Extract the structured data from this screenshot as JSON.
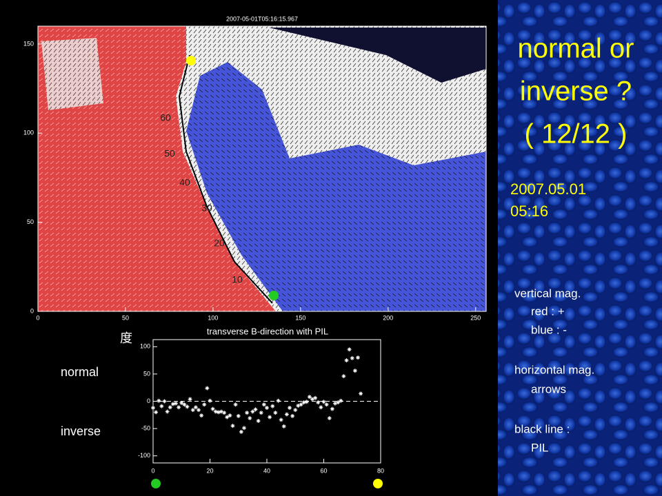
{
  "slide": {
    "title_lines": [
      "normal or",
      "inverse ?",
      "( 12/12 )"
    ],
    "date_lines": [
      "2007.05.01",
      "05:16"
    ],
    "legend_lines": [
      "vertical mag.",
      "red : +",
      "blue : -",
      "horizontal mag.",
      "arrows",
      "black line :",
      "PIL"
    ]
  },
  "magnetogram": {
    "title": "2007-05-01T05:16:15.967",
    "xlim": [
      0,
      256
    ],
    "ylim": [
      0,
      160
    ],
    "xticks": [
      0,
      50,
      100,
      150,
      200,
      250
    ],
    "yticks": [
      0,
      50,
      100,
      150
    ],
    "contour_labels": [
      "60",
      "50",
      "40",
      "30",
      "20",
      "10"
    ]
  },
  "chart_data": {
    "type": "scatter",
    "title": "transverse B-direction with PIL",
    "ylabel": "度",
    "annotations": [
      "normal",
      "inverse"
    ],
    "color": "#ffffff",
    "xlim": [
      0,
      80
    ],
    "ylim": [
      -113,
      113
    ],
    "xticks": [
      0,
      20,
      40,
      60,
      80
    ],
    "yticks": [
      -100,
      -50,
      0,
      50,
      100
    ],
    "x": [
      0,
      1,
      2,
      3,
      4,
      5,
      6,
      7,
      8,
      9,
      10,
      11,
      12,
      13,
      14,
      15,
      16,
      17,
      18,
      19,
      20,
      21,
      22,
      23,
      24,
      25,
      26,
      27,
      28,
      29,
      30,
      31,
      32,
      33,
      34,
      35,
      36,
      37,
      38,
      39,
      40,
      41,
      42,
      43,
      44,
      45,
      46,
      47,
      48,
      49,
      50,
      51,
      52,
      53,
      54,
      55,
      56,
      57,
      58,
      59,
      60,
      61,
      62,
      63,
      64,
      65,
      66,
      67,
      68,
      69,
      70,
      71,
      72,
      73
    ],
    "values": [
      -12,
      -20,
      1,
      -9,
      0,
      -19,
      -11,
      -5,
      -4,
      -11,
      -3,
      -6,
      -10,
      4,
      -16,
      -11,
      -16,
      -26,
      -6,
      24,
      1,
      -14,
      -19,
      -20,
      -19,
      -21,
      -29,
      -26,
      -45,
      -6,
      -27,
      -56,
      -49,
      -21,
      -31,
      -19,
      -15,
      -36,
      -21,
      -6,
      -12,
      -29,
      -9,
      -21,
      1,
      -34,
      -46,
      -24,
      -12,
      -27,
      -16,
      -8,
      -6,
      -2,
      -1,
      8,
      4,
      6,
      -2,
      -11,
      -1,
      -6,
      -31,
      -14,
      -4,
      -2,
      1,
      46,
      75,
      95,
      79,
      56,
      80,
      14
    ]
  }
}
